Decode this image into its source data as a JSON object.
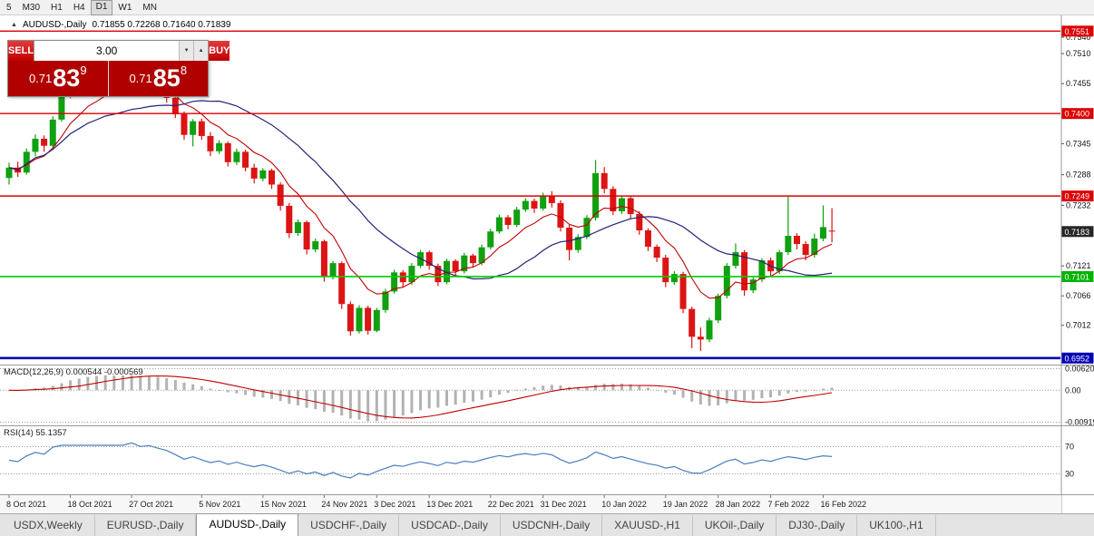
{
  "toolbar": {
    "periods": [
      "5",
      "M30",
      "H1",
      "H4",
      "D1",
      "W1",
      "MN"
    ],
    "active_period": "D1"
  },
  "chart_header": {
    "symbol_title": "AUDUSD-,Daily",
    "ohlc": "0.71855 0.72268 0.71640 0.71839"
  },
  "trade_widget": {
    "sell_label": "SELL",
    "buy_label": "BUY",
    "volume": "3.00",
    "sell_price": {
      "prefix": "0.71",
      "big": "83",
      "sup": "9"
    },
    "buy_price": {
      "prefix": "0.71",
      "big": "85",
      "sup": "8"
    }
  },
  "indicators": {
    "macd_label": "MACD(12,26,9) 0.000544 -0.000569",
    "macd_levels": [
      "0.00620",
      "0.00",
      "-0.00919"
    ],
    "rsi_label": "RSI(14) 55.1357",
    "rsi_levels": [
      "70",
      "30"
    ]
  },
  "price_axis": {
    "ticks": [
      {
        "label": "0.7540",
        "price": 0.754
      },
      {
        "label": "0.7510",
        "price": 0.751
      },
      {
        "label": "0.7455",
        "price": 0.7455
      },
      {
        "label": "0.7345",
        "price": 0.7345
      },
      {
        "label": "0.7288",
        "price": 0.7288
      },
      {
        "label": "0.7232",
        "price": 0.7232
      },
      {
        "label": "0.7121",
        "price": 0.7121
      },
      {
        "label": "0.7066",
        "price": 0.7066
      },
      {
        "label": "0.7012",
        "price": 0.7012
      }
    ],
    "badges": [
      {
        "label": "0.7551",
        "price": 0.75512,
        "bg": "#dd0000"
      },
      {
        "label": "0.7400",
        "price": 0.74002,
        "bg": "#dd0000"
      },
      {
        "label": "0.7249",
        "price": 0.7249,
        "bg": "#dd0000"
      },
      {
        "label": "0.7183",
        "price": 0.71839,
        "bg": "#262626"
      },
      {
        "label": "0.7101",
        "price": 0.71013,
        "bg": "#00b400"
      },
      {
        "label": "0.6952",
        "price": 0.6952,
        "bg": "#0000b4"
      }
    ]
  },
  "date_axis": [
    {
      "label": "8 Oct 2021",
      "i": 0
    },
    {
      "label": "18 Oct 2021",
      "i": 7
    },
    {
      "label": "27 Oct 2021",
      "i": 14
    },
    {
      "label": "5 Nov 2021",
      "i": 22
    },
    {
      "label": "15 Nov 2021",
      "i": 29
    },
    {
      "label": "24 Nov 2021",
      "i": 36
    },
    {
      "label": "3 Dec 2021",
      "i": 42
    },
    {
      "label": "13 Dec 2021",
      "i": 48
    },
    {
      "label": "22 Dec 2021",
      "i": 55
    },
    {
      "label": "31 Dec 2021",
      "i": 61
    },
    {
      "label": "10 Jan 2022",
      "i": 68
    },
    {
      "label": "19 Jan 2022",
      "i": 75
    },
    {
      "label": "28 Jan 2022",
      "i": 81
    },
    {
      "label": "7 Feb 2022",
      "i": 87
    },
    {
      "label": "16 Feb 2022",
      "i": 93
    }
  ],
  "tabs": [
    {
      "label": "USDX,Weekly",
      "active": false
    },
    {
      "label": "EURUSD-,Daily",
      "active": false
    },
    {
      "label": "AUDUSD-,Daily",
      "active": true
    },
    {
      "label": "USDCHF-,Daily",
      "active": false
    },
    {
      "label": "USDCAD-,Daily",
      "active": false
    },
    {
      "label": "USDCNH-,Daily",
      "active": false
    },
    {
      "label": "XAUUSD-,H1",
      "active": false
    },
    {
      "label": "UKOil-,Daily",
      "active": false
    },
    {
      "label": "DJ30-,Daily",
      "active": false
    },
    {
      "label": "UK100-,H1",
      "active": false
    }
  ],
  "chart_data": {
    "type": "candlestick",
    "symbol": "AUDUSD-",
    "timeframe": "Daily",
    "price_range": [
      0.694,
      0.758
    ],
    "up_color": "#10a010",
    "down_color": "#dc1414",
    "moving_averages": [
      {
        "type": "ema",
        "period": 8,
        "color": "#c00000"
      },
      {
        "type": "sma",
        "period": 20,
        "color": "#22227a"
      }
    ],
    "hlines": [
      {
        "price": 0.75512,
        "color": "#dd0000",
        "w": 1.4
      },
      {
        "price": 0.74002,
        "color": "#dd0000",
        "w": 1.4
      },
      {
        "price": 0.7249,
        "color": "#dd0000",
        "w": 1.4
      },
      {
        "price": 0.71013,
        "color": "#00cc00",
        "w": 1.6
      },
      {
        "price": 0.6952,
        "color": "#0000b4",
        "w": 2.6
      }
    ],
    "macd": {
      "fast": 12,
      "slow": 26,
      "signal": 9,
      "histogram_color": "#b2b2b2",
      "signal_color": "#c00000",
      "scale": [
        -0.00919,
        0.0062
      ]
    },
    "rsi": {
      "period": 14,
      "color": "#4a7ebf",
      "levels": [
        70,
        30
      ],
      "scale": [
        0,
        100
      ]
    },
    "candles": [
      [
        0.7282,
        0.731,
        0.727,
        0.7301
      ],
      [
        0.7301,
        0.7312,
        0.7284,
        0.7292
      ],
      [
        0.7292,
        0.7336,
        0.7288,
        0.733
      ],
      [
        0.733,
        0.7362,
        0.7322,
        0.7354
      ],
      [
        0.7354,
        0.736,
        0.733,
        0.7341
      ],
      [
        0.7341,
        0.7395,
        0.7338,
        0.7389
      ],
      [
        0.7389,
        0.7438,
        0.7385,
        0.7431
      ],
      [
        0.7431,
        0.7478,
        0.7428,
        0.7466
      ],
      [
        0.7466,
        0.7472,
        0.7442,
        0.7449
      ],
      [
        0.7449,
        0.7475,
        0.7445,
        0.747
      ],
      [
        0.747,
        0.7477,
        0.7449,
        0.7455
      ],
      [
        0.7455,
        0.7472,
        0.745,
        0.7468
      ],
      [
        0.7468,
        0.747,
        0.7436,
        0.7441
      ],
      [
        0.7441,
        0.746,
        0.7435,
        0.7456
      ],
      [
        0.7456,
        0.7474,
        0.7452,
        0.747
      ],
      [
        0.747,
        0.7473,
        0.7441,
        0.7447
      ],
      [
        0.7447,
        0.7465,
        0.744,
        0.7461
      ],
      [
        0.7461,
        0.7464,
        0.7437,
        0.7444
      ],
      [
        0.7444,
        0.7449,
        0.742,
        0.7429
      ],
      [
        0.7429,
        0.7433,
        0.7392,
        0.7399
      ],
      [
        0.7399,
        0.7404,
        0.7352,
        0.7361
      ],
      [
        0.7361,
        0.739,
        0.734,
        0.7386
      ],
      [
        0.7386,
        0.7391,
        0.7352,
        0.7359
      ],
      [
        0.7359,
        0.7366,
        0.7322,
        0.7331
      ],
      [
        0.7331,
        0.7351,
        0.7326,
        0.7346
      ],
      [
        0.7346,
        0.7349,
        0.7303,
        0.7311
      ],
      [
        0.7311,
        0.7336,
        0.7306,
        0.733
      ],
      [
        0.733,
        0.7334,
        0.7294,
        0.7301
      ],
      [
        0.7301,
        0.7308,
        0.7272,
        0.7281
      ],
      [
        0.7281,
        0.73,
        0.7276,
        0.7296
      ],
      [
        0.7296,
        0.7299,
        0.7262,
        0.727
      ],
      [
        0.727,
        0.7274,
        0.7222,
        0.7231
      ],
      [
        0.7231,
        0.7236,
        0.7172,
        0.7181
      ],
      [
        0.7181,
        0.7206,
        0.7176,
        0.7201
      ],
      [
        0.7201,
        0.7204,
        0.7142,
        0.7151
      ],
      [
        0.7151,
        0.7171,
        0.7146,
        0.7166
      ],
      [
        0.7166,
        0.7169,
        0.7092,
        0.7101
      ],
      [
        0.7101,
        0.713,
        0.7096,
        0.7126
      ],
      [
        0.7126,
        0.7129,
        0.7042,
        0.7051
      ],
      [
        0.7051,
        0.7056,
        0.6993,
        0.7001
      ],
      [
        0.7001,
        0.7049,
        0.6997,
        0.7044
      ],
      [
        0.7044,
        0.7048,
        0.6995,
        0.7002
      ],
      [
        0.7002,
        0.7044,
        0.6999,
        0.704
      ],
      [
        0.704,
        0.7079,
        0.7035,
        0.7074
      ],
      [
        0.7074,
        0.7114,
        0.707,
        0.7109
      ],
      [
        0.7109,
        0.7113,
        0.7082,
        0.7091
      ],
      [
        0.7091,
        0.7126,
        0.7086,
        0.7121
      ],
      [
        0.7121,
        0.715,
        0.7117,
        0.7146
      ],
      [
        0.7146,
        0.7149,
        0.7114,
        0.7121
      ],
      [
        0.7121,
        0.7125,
        0.7084,
        0.7091
      ],
      [
        0.7091,
        0.7134,
        0.7087,
        0.713
      ],
      [
        0.713,
        0.7133,
        0.7102,
        0.7111
      ],
      [
        0.7111,
        0.7145,
        0.7107,
        0.714
      ],
      [
        0.714,
        0.7143,
        0.7118,
        0.7126
      ],
      [
        0.7126,
        0.716,
        0.7122,
        0.7155
      ],
      [
        0.7155,
        0.7189,
        0.7151,
        0.7184
      ],
      [
        0.7184,
        0.7215,
        0.718,
        0.721
      ],
      [
        0.721,
        0.7214,
        0.7188,
        0.7196
      ],
      [
        0.7196,
        0.7229,
        0.7192,
        0.7224
      ],
      [
        0.7224,
        0.7245,
        0.722,
        0.724
      ],
      [
        0.724,
        0.7244,
        0.7218,
        0.7226
      ],
      [
        0.7226,
        0.7255,
        0.7222,
        0.725
      ],
      [
        0.725,
        0.7258,
        0.7228,
        0.7236
      ],
      [
        0.7236,
        0.7241,
        0.7184,
        0.7191
      ],
      [
        0.7191,
        0.7196,
        0.7131,
        0.715
      ],
      [
        0.715,
        0.7179,
        0.7145,
        0.7174
      ],
      [
        0.7174,
        0.7214,
        0.717,
        0.7209
      ],
      [
        0.7209,
        0.7315,
        0.7204,
        0.7291
      ],
      [
        0.7291,
        0.7302,
        0.7254,
        0.7262
      ],
      [
        0.7262,
        0.7267,
        0.7214,
        0.7221
      ],
      [
        0.7221,
        0.725,
        0.7216,
        0.7245
      ],
      [
        0.7245,
        0.7249,
        0.7208,
        0.7216
      ],
      [
        0.7216,
        0.7221,
        0.7178,
        0.7186
      ],
      [
        0.7186,
        0.719,
        0.7148,
        0.7156
      ],
      [
        0.7156,
        0.716,
        0.7128,
        0.7136
      ],
      [
        0.7136,
        0.7141,
        0.7082,
        0.7091
      ],
      [
        0.7091,
        0.7111,
        0.7086,
        0.7106
      ],
      [
        0.7106,
        0.711,
        0.7034,
        0.7042
      ],
      [
        0.7042,
        0.7046,
        0.697,
        0.6991
      ],
      [
        0.6991,
        0.7008,
        0.6965,
        0.6986
      ],
      [
        0.6986,
        0.7026,
        0.6981,
        0.7021
      ],
      [
        0.7021,
        0.707,
        0.7016,
        0.7066
      ],
      [
        0.7066,
        0.7126,
        0.7061,
        0.7121
      ],
      [
        0.7121,
        0.7162,
        0.7116,
        0.7146
      ],
      [
        0.7146,
        0.715,
        0.7066,
        0.7076
      ],
      [
        0.7076,
        0.71,
        0.7071,
        0.7096
      ],
      [
        0.7096,
        0.7135,
        0.7091,
        0.7131
      ],
      [
        0.7131,
        0.7136,
        0.7102,
        0.7111
      ],
      [
        0.7111,
        0.715,
        0.7106,
        0.7146
      ],
      [
        0.7146,
        0.7248,
        0.7141,
        0.7176
      ],
      [
        0.7176,
        0.7181,
        0.7151,
        0.7161
      ],
      [
        0.7161,
        0.7166,
        0.7131,
        0.7141
      ],
      [
        0.7141,
        0.718,
        0.7136,
        0.7171
      ],
      [
        0.7171,
        0.7232,
        0.7166,
        0.7192
      ],
      [
        0.71855,
        0.72268,
        0.7164,
        0.71839
      ]
    ]
  }
}
